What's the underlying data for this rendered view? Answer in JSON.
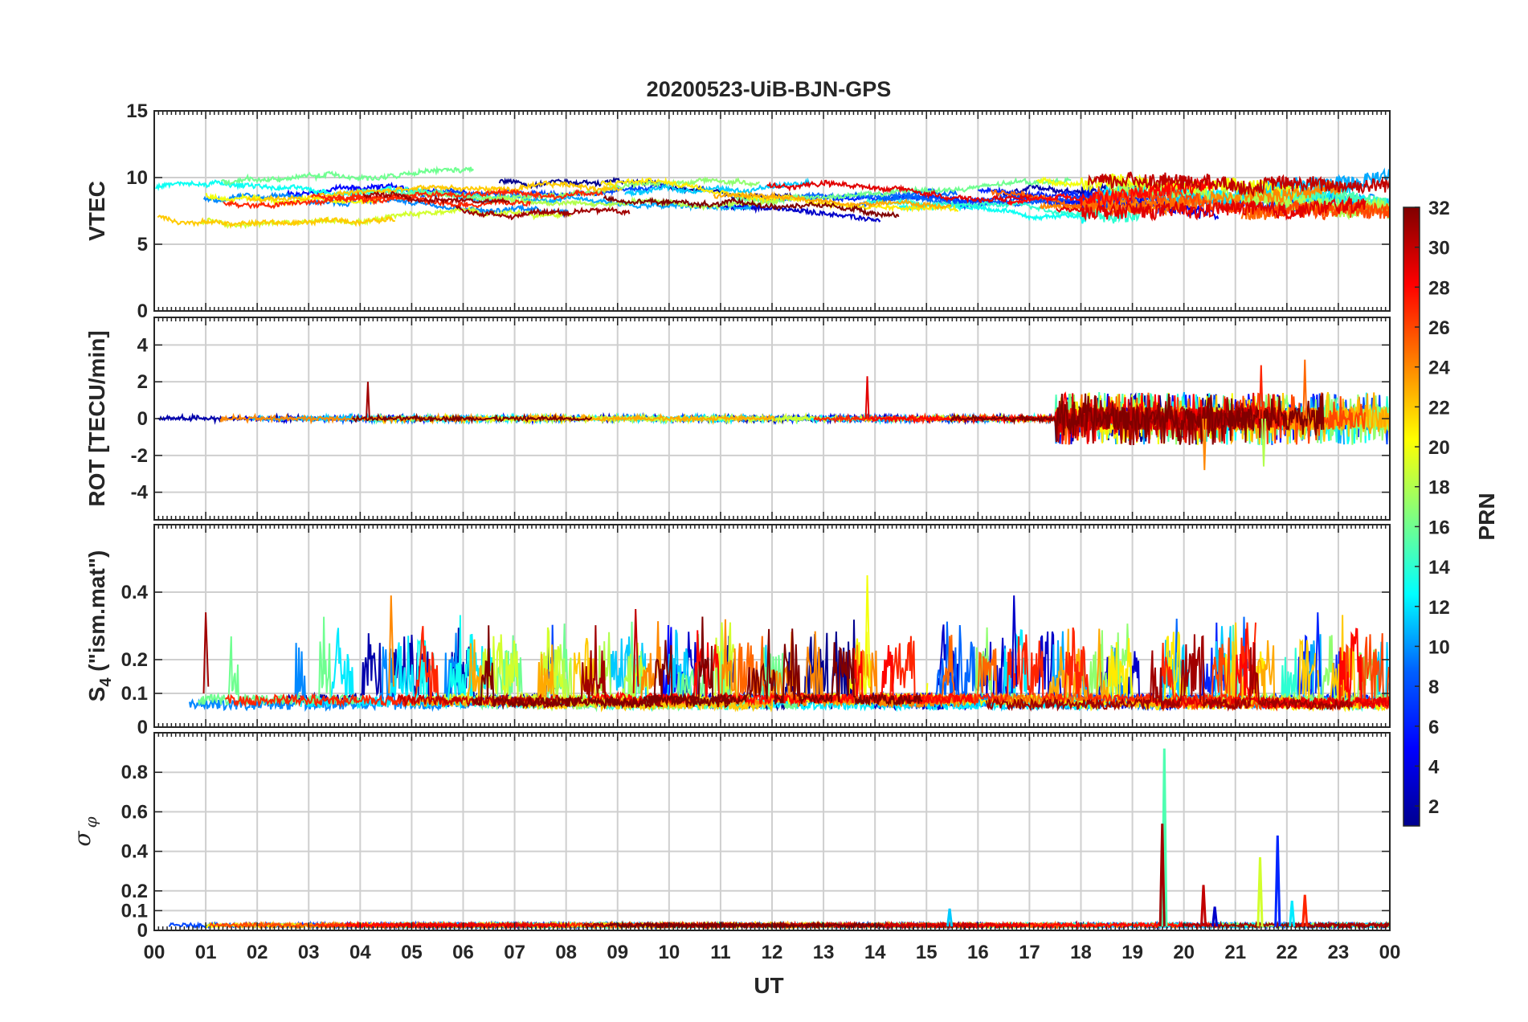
{
  "title": "20200523-UiB-BJN-GPS",
  "x_axis": {
    "label": "UT",
    "ticks": [
      "00",
      "01",
      "02",
      "03",
      "04",
      "05",
      "06",
      "07",
      "08",
      "09",
      "10",
      "11",
      "12",
      "13",
      "14",
      "15",
      "16",
      "17",
      "18",
      "19",
      "20",
      "21",
      "22",
      "23",
      "00"
    ],
    "range_hours": [
      0,
      24
    ]
  },
  "colorbar": {
    "label": "PRN",
    "range": [
      1,
      32
    ],
    "ticks": [
      "2",
      "4",
      "6",
      "8",
      "10",
      "12",
      "14",
      "16",
      "18",
      "20",
      "22",
      "24",
      "26",
      "28",
      "30",
      "32"
    ],
    "colormap": "jet",
    "colors": [
      "#00008f",
      "#0000ff",
      "#0080ff",
      "#00ffff",
      "#80ff80",
      "#ffff00",
      "#ff8000",
      "#ff0000",
      "#800000"
    ]
  },
  "panels": [
    {
      "ylabel": "VTEC",
      "ylim": [
        0,
        15
      ],
      "yticks": [
        "0",
        "5",
        "10",
        "15"
      ],
      "signal": {
        "type": "smooth",
        "base": 8.5,
        "amp": 1.4,
        "noise": 0.15
      }
    },
    {
      "ylabel": "ROT [TECU/min]",
      "ylim": [
        -5.5,
        5.5
      ],
      "yticks": [
        "-4",
        "-2",
        "0",
        "2",
        "4"
      ],
      "signal": {
        "type": "rot",
        "base": 0,
        "noise": 0.12,
        "active_hours": [
          17.5,
          24
        ],
        "active_noise": 0.9
      }
    },
    {
      "ylabel_main": "S",
      "ylabel_sub": "4",
      "ylabel_rest": "(\"ism.mat\")",
      "ylim": [
        0,
        0.6
      ],
      "yticks": [
        "0",
        "0.1",
        "0.2",
        "0.4"
      ],
      "signal": {
        "type": "s4",
        "base": 0.07,
        "noise": 0.015,
        "burst_peak": 0.25
      }
    },
    {
      "ylabel_symbol": "σ",
      "ylabel_sub": "φ",
      "ylim": [
        0,
        1
      ],
      "yticks": [
        "0",
        "0.1",
        "0.2",
        "0.4",
        "0.6",
        "0.8"
      ],
      "signal": {
        "type": "phi",
        "base": 0.02,
        "noise": 0.01,
        "spikes": [
          {
            "hour": 19.62,
            "value": 0.92,
            "prn": 15
          },
          {
            "hour": 19.58,
            "value": 0.54,
            "prn": 31
          },
          {
            "hour": 21.82,
            "value": 0.48,
            "prn": 6
          },
          {
            "hour": 21.48,
            "value": 0.37,
            "prn": 19
          },
          {
            "hour": 20.38,
            "value": 0.23,
            "prn": 30
          },
          {
            "hour": 22.35,
            "value": 0.18,
            "prn": 27
          },
          {
            "hour": 22.1,
            "value": 0.15,
            "prn": 12
          },
          {
            "hour": 15.45,
            "value": 0.11,
            "prn": 11
          },
          {
            "hour": 20.6,
            "value": 0.12,
            "prn": 3
          }
        ]
      }
    }
  ],
  "chart_data": {
    "type": "line",
    "title": "20200523-UiB-BJN-GPS",
    "xlabel": "UT",
    "xlim_hours": [
      0,
      24
    ],
    "panels": [
      {
        "ylabel": "VTEC",
        "ylim": [
          0,
          15
        ],
        "typical_range": [
          5,
          12
        ]
      },
      {
        "ylabel": "ROT [TECU/min]",
        "ylim": [
          -5.5,
          5.5
        ],
        "typical_range": [
          -3,
          3.2
        ]
      },
      {
        "ylabel": "S4 (\"ism.mat\")",
        "ylim": [
          0,
          0.6
        ],
        "max_value": 0.45,
        "max_hour": 13.85
      },
      {
        "ylabel": "σφ",
        "ylim": [
          0,
          1
        ],
        "max_value": 0.92,
        "max_hour": 19.62
      }
    ],
    "series_by": "PRN",
    "series_count": 32,
    "grid": true,
    "colorbar": {
      "label": "PRN",
      "range": [
        1,
        32
      ],
      "position": "right"
    }
  }
}
